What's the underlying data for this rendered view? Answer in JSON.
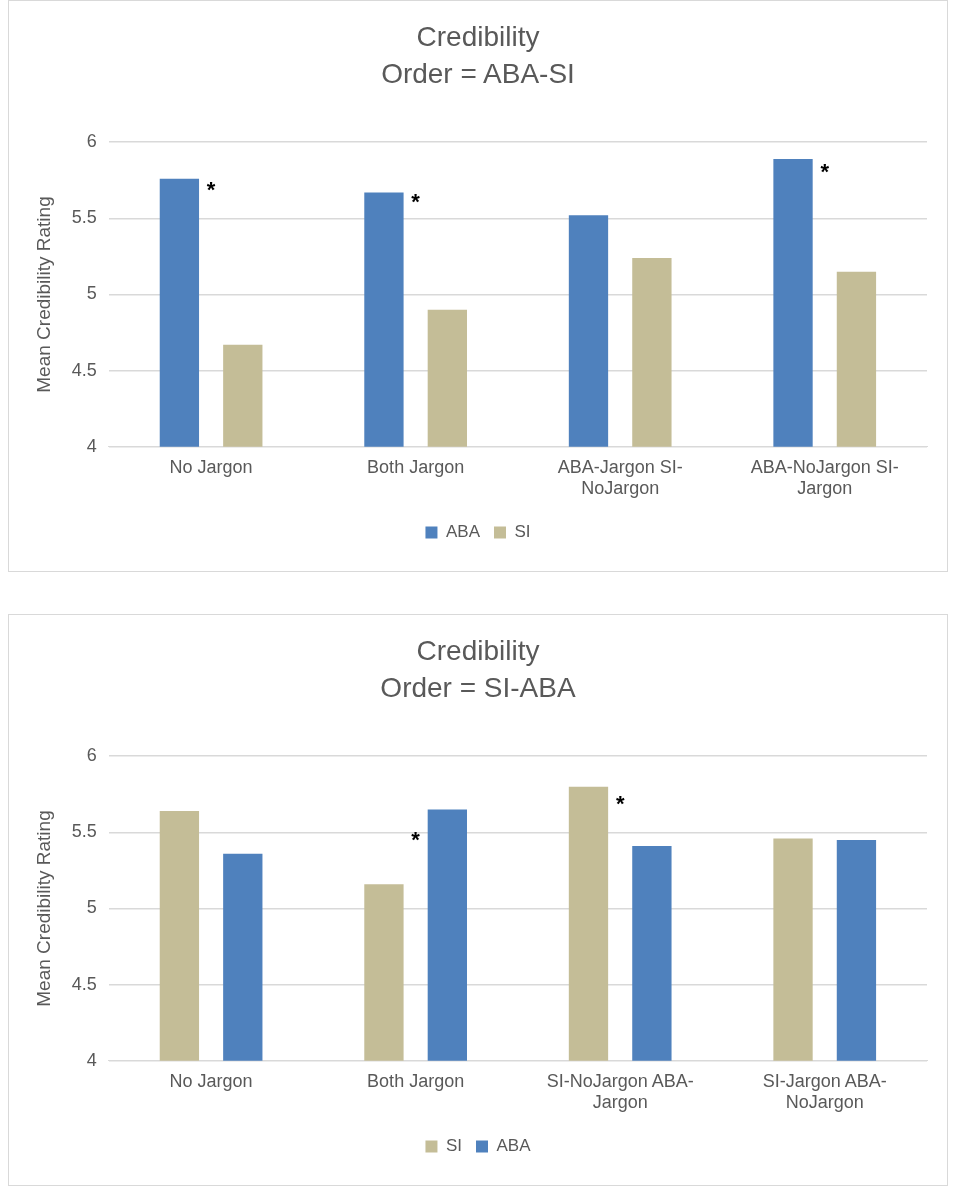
{
  "chart_data": [
    {
      "type": "bar",
      "title": "Credibility",
      "subtitle": "Order = ABA-SI",
      "ylabel": "Mean Credibility Rating",
      "categories": [
        "No Jargon",
        "Both Jargon",
        "ABA-Jargon SI-NoJargon",
        "ABA-NoJargon SI-Jargon"
      ],
      "series": [
        {
          "name": "ABA",
          "color": "#4f81bd",
          "values": [
            5.76,
            5.67,
            5.52,
            5.89
          ]
        },
        {
          "name": "SI",
          "color": "#c4bd97",
          "values": [
            4.67,
            4.9,
            5.24,
            5.15
          ]
        }
      ],
      "ylim": [
        4,
        6
      ],
      "yticks": [
        4,
        4.5,
        5,
        5.5,
        6
      ],
      "grid": "y",
      "legend": "bottom",
      "annotations": [
        "*",
        "*",
        "*"
      ]
    },
    {
      "type": "bar",
      "title": "Credibility",
      "subtitle": "Order = SI-ABA",
      "ylabel": "Mean Credibility Rating",
      "categories": [
        "No Jargon",
        "Both Jargon",
        "SI-NoJargon ABA-Jargon",
        "SI-Jargon ABA-NoJargon"
      ],
      "series": [
        {
          "name": "SI",
          "color": "#c4bd97",
          "values": [
            5.64,
            5.16,
            5.8,
            5.46
          ]
        },
        {
          "name": "ABA",
          "color": "#4f81bd",
          "values": [
            5.36,
            5.65,
            5.41,
            5.45
          ]
        }
      ],
      "ylim": [
        4,
        6
      ],
      "yticks": [
        4,
        4.5,
        5,
        5.5,
        6
      ],
      "grid": "y",
      "legend": "bottom",
      "annotations": [
        "*",
        "*"
      ]
    }
  ]
}
